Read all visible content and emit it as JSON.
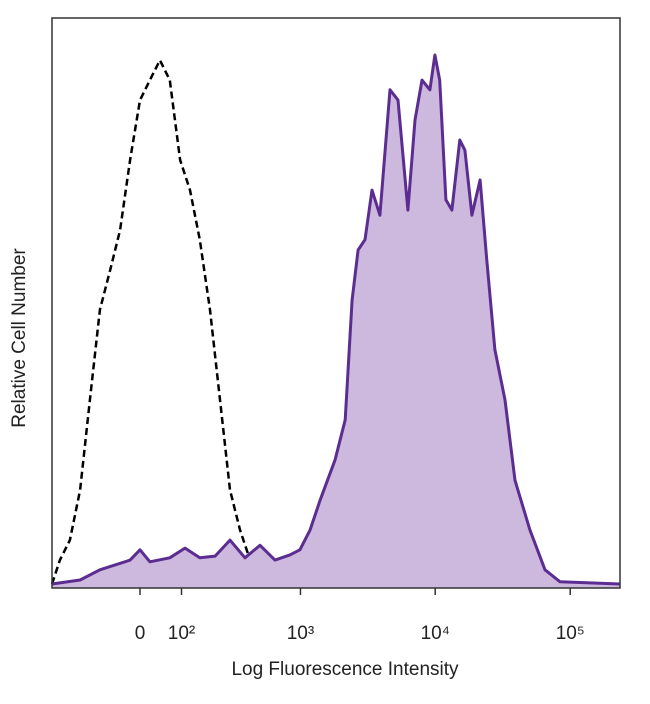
{
  "chart_data": {
    "type": "histogram-overlay",
    "x_label": "Log Fluorescence Intensity",
    "y_label": "Relative Cell Number",
    "xscale": "biexponential",
    "xlim": [
      -277,
      233800
    ],
    "xticks": [
      0,
      {
        "value": 100,
        "label": "10²"
      },
      {
        "value": 1000,
        "label": "10³"
      },
      {
        "value": 10000,
        "label": "10⁴"
      },
      {
        "value": 100000,
        "label": "10⁵"
      }
    ],
    "ylim": [
      0,
      100
    ],
    "series": [
      {
        "color": "#000000",
        "dash": "dashed",
        "filled": false,
        "x": [
          -277,
          -238,
          -195,
          -157,
          -125,
          -96,
          -69,
          -45,
          -22,
          0,
          22,
          45,
          69,
          96,
          125,
          157,
          195,
          238,
          288,
          346,
          415,
          590,
          990,
          233800
        ],
        "values": [
          0.7,
          4.9,
          8.4,
          17.2,
          33,
          48.8,
          55.8,
          62.8,
          75.1,
          85.6,
          89.1,
          92.6,
          89.1,
          75.1,
          69.8,
          61.1,
          48.8,
          33,
          17.2,
          10.2,
          4.9,
          1.8,
          0.7,
          0.7
        ]
      },
      {
        "color": "#5b2d91",
        "fill_color": "#cdb9dd",
        "dash": "solid",
        "filled": true,
        "x": [
          -277,
          -157,
          -96,
          -22,
          0,
          22,
          69,
          110,
          157,
          216,
          288,
          379,
          495,
          644,
          834,
          990,
          1180,
          1400,
          1810,
          2150,
          2420,
          2680,
          3020,
          3400,
          3890,
          4620,
          5300,
          6280,
          7080,
          7980,
          9140,
          9950,
          10800,
          12000,
          13300,
          15200,
          16600,
          18700,
          21500,
          24100,
          27700,
          32900,
          39000,
          50300,
          65000,
          83900,
          233800
        ],
        "values": [
          0.7,
          1.4,
          3.2,
          4.9,
          6.7,
          4.6,
          5.3,
          7.0,
          5.3,
          5.6,
          8.4,
          5.3,
          7.5,
          4.9,
          5.8,
          6.7,
          10.2,
          15.4,
          22.5,
          29.5,
          50.5,
          59.3,
          61.1,
          69.8,
          65.4,
          87.4,
          85.6,
          66.3,
          82.1,
          89.1,
          87.4,
          93.5,
          89.1,
          68.1,
          66.3,
          78.6,
          76.8,
          65.4,
          71.6,
          57.5,
          41.8,
          33,
          18.9,
          10.2,
          3.2,
          1.1,
          0.7
        ]
      }
    ]
  }
}
